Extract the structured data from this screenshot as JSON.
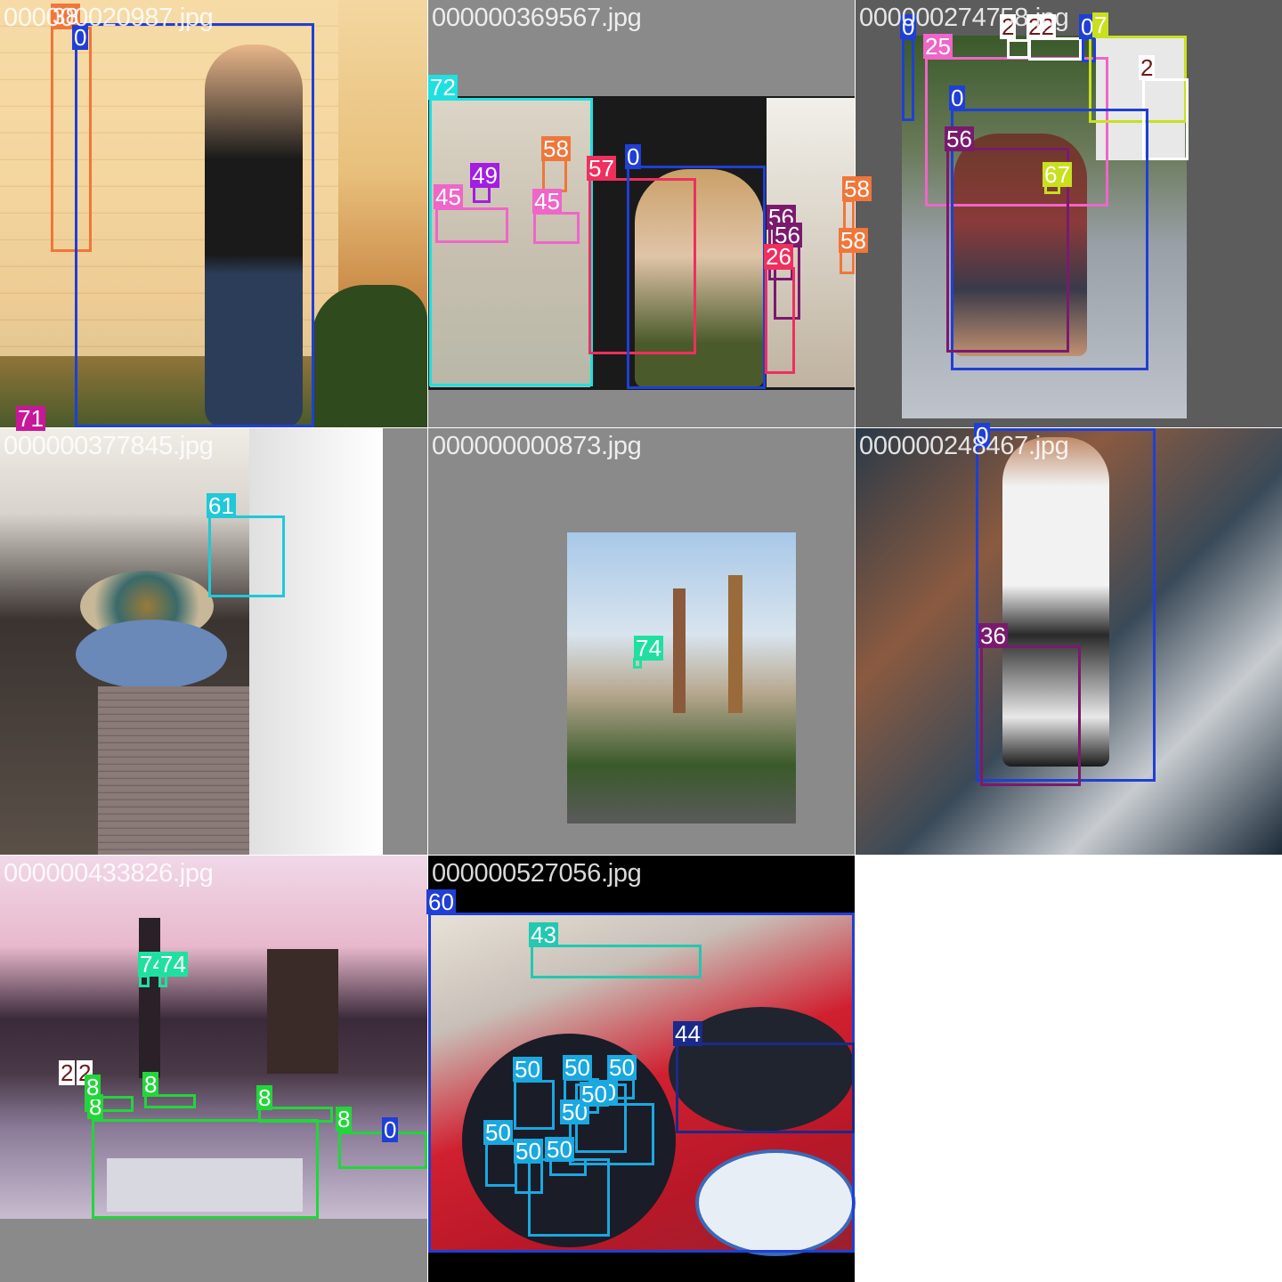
{
  "tiles": [
    {
      "filename": "000000020987.jpg",
      "labels": {
        "a": "38",
        "b": "0",
        "c": "71"
      },
      "colors": {
        "a": "#f0763a",
        "b": "#1f3fd6",
        "c": "#c8189a"
      }
    },
    {
      "filename": "000000369567.jpg",
      "labels": {
        "a": "72",
        "b": "58",
        "c": "49",
        "d": "45",
        "e": "45",
        "f": "57",
        "g": "0",
        "h": "56",
        "i": "56",
        "j": "26",
        "k": "58",
        "l": "58"
      },
      "colors": {
        "cyan": "#1fe0e0",
        "orange": "#f0763a",
        "purple": "#a21ee0",
        "pink": "#ee66c8",
        "red": "#ef2f5e",
        "blue": "#1f3fd6",
        "plum": "#7a1a6e"
      }
    },
    {
      "filename": "000000274758.jpg",
      "labels": {
        "a": "0",
        "b": "25",
        "c": "2",
        "d": "22",
        "e": "0",
        "f": "7",
        "g": "2",
        "h": "0",
        "i": "56",
        "j": "67"
      },
      "colors": {
        "blue": "#1f3fd6",
        "pink": "#ee66c8",
        "white": "#ffffff",
        "lime": "#c8e01e",
        "plum": "#7a1a6e"
      }
    },
    {
      "filename": "000000377845.jpg",
      "labels": {
        "a": "61"
      },
      "colors": {
        "cyan": "#20c8d8"
      }
    },
    {
      "filename": "000000000873.jpg",
      "labels": {
        "a": "74"
      },
      "colors": {
        "teal": "#20e0a0"
      }
    },
    {
      "filename": "000000248467.jpg",
      "labels": {
        "a": "0",
        "b": "36"
      },
      "colors": {
        "blue": "#1f3fd6",
        "plum": "#7a1a6e"
      }
    },
    {
      "filename": "000000433826.jpg",
      "labels": {
        "a": "74",
        "b": "74",
        "c": "2",
        "d": "2",
        "e": "8",
        "f": "8",
        "g": "8",
        "h": "8",
        "i": "8",
        "j": "0"
      },
      "colors": {
        "teal": "#20e0a0",
        "green": "#22d63a",
        "white": "#ffffff",
        "blue": "#1f3fd6"
      }
    },
    {
      "filename": "000000527056.jpg",
      "labels": {
        "a": "60",
        "b": "43",
        "c": "44",
        "d": "50",
        "e": "50",
        "f": "50",
        "g": "50",
        "h": "50",
        "i": "50",
        "j": "50",
        "k": "50",
        "l": "50"
      },
      "colors": {
        "blue": "#1f3fd6",
        "teal": "#22c8b0",
        "navy": "#1a2a8a",
        "sky": "#1aa8e0"
      }
    }
  ]
}
